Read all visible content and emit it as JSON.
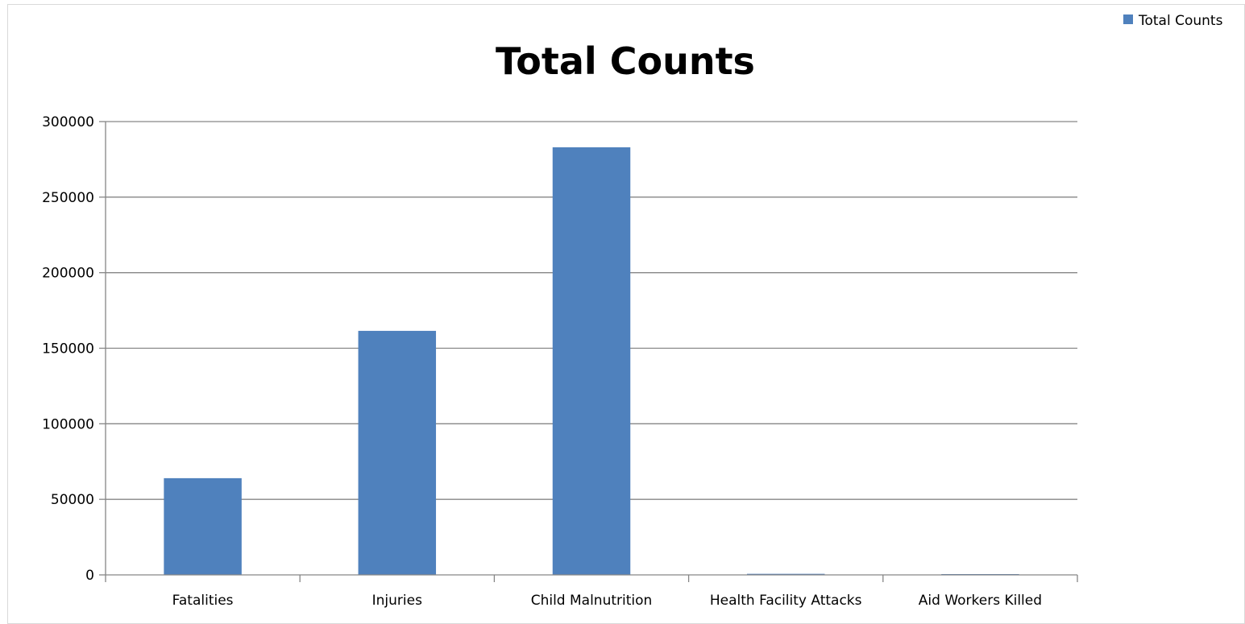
{
  "chart_data": {
    "type": "bar",
    "title": "Total Counts",
    "xlabel": "",
    "ylabel": "",
    "categories": [
      "Fatalities",
      "Injuries",
      "Child Malnutrition",
      "Health Facility Attacks",
      "Aid Workers Killed"
    ],
    "series": [
      {
        "name": "Total Counts",
        "values": [
          64000,
          161500,
          283000,
          700,
          500
        ]
      }
    ],
    "ylim": [
      0,
      300000
    ],
    "yticks": [
      "0",
      "50000",
      "100000",
      "150000",
      "200000",
      "250000",
      "300000"
    ],
    "grid": true,
    "legend_position": "top-right",
    "colors": {
      "bar": "#4f81bd",
      "grid": "#868686",
      "axis": "#868686"
    }
  }
}
